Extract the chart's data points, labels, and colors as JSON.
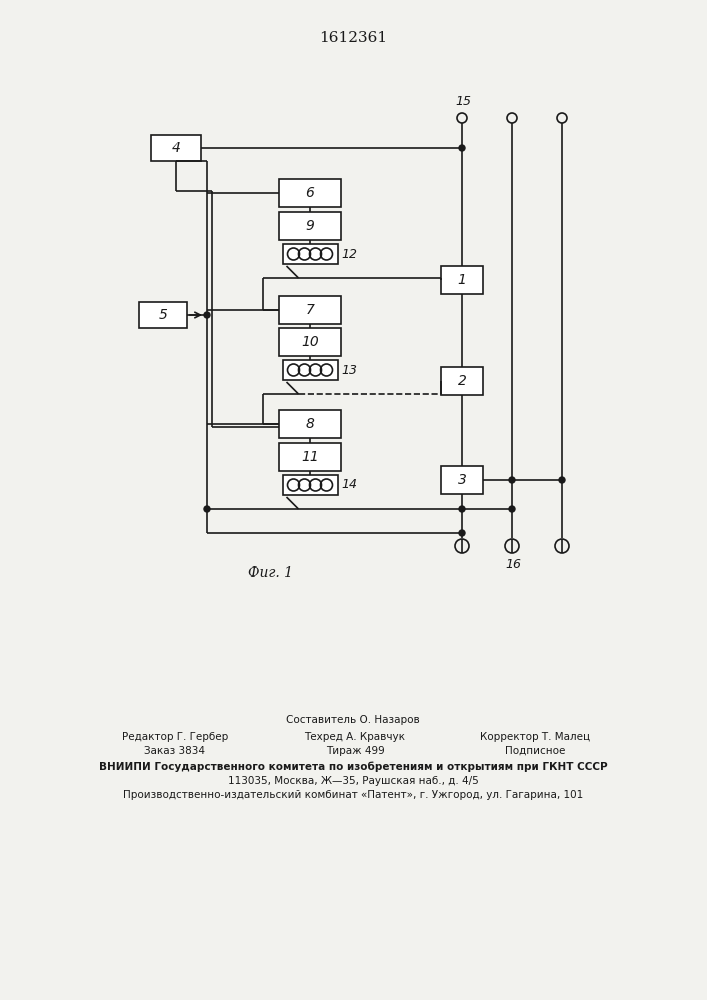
{
  "patent_number": "1612361",
  "fig_caption": "Фиг. 1",
  "bg_color": "#f2f2ee",
  "line_color": "#1a1a1a",
  "bottom_text_line1": "Составитель О. Назаров",
  "bottom_text_line2_left": "Редактор Г. Гербер",
  "bottom_text_line2_mid": "Техред А. Кравчук",
  "bottom_text_line2_right": "Корректор Т. Малец",
  "bottom_text_line3_left": "Заказ 3834",
  "bottom_text_line3_mid": "Тираж 499",
  "bottom_text_line3_right": "Подписное",
  "bottom_text_line4": "ВНИИПИ Государственного комитета по изобретениям и открытиям при ГКНТ СССР",
  "bottom_text_line5": "113035, Москва, Ж—35, Раушская наб., д. 4/5",
  "bottom_text_line6": "Производственно-издательский комбинат «Патент», г. Ужгород, ул. Гагарина, 101"
}
